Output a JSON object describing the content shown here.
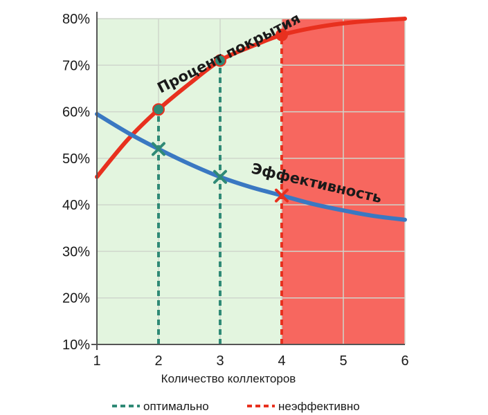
{
  "chart_data": {
    "type": "line",
    "xlabel": "Количество коллекторов",
    "x": [
      1,
      2,
      3,
      4,
      5,
      6
    ],
    "xlim": [
      1,
      6
    ],
    "ylim": [
      10,
      80
    ],
    "yticks": [
      "10%",
      "20%",
      "30%",
      "40%",
      "50%",
      "60%",
      "70%",
      "80%"
    ],
    "xticks": [
      "1",
      "2",
      "3",
      "4",
      "5",
      "6"
    ],
    "grid": true,
    "regions": [
      {
        "from": 1,
        "to": 4,
        "color": "#e3f5df"
      },
      {
        "from": 4,
        "to": 6,
        "color": "#f7675f"
      }
    ],
    "series": [
      {
        "name": "Процент покрытия",
        "color": "#e8301e",
        "points": [
          [
            1,
            46
          ],
          [
            1.5,
            54
          ],
          [
            2,
            60.5
          ],
          [
            2.5,
            66
          ],
          [
            3,
            71
          ],
          [
            3.5,
            74
          ],
          [
            4,
            76.5
          ],
          [
            4.5,
            78
          ],
          [
            5,
            79
          ],
          [
            5.5,
            79.6
          ],
          [
            6,
            80
          ]
        ]
      },
      {
        "name": "Эффективность",
        "color": "#3a78c2",
        "points": [
          [
            1,
            59.5
          ],
          [
            1.5,
            55.5
          ],
          [
            2,
            52
          ],
          [
            2.5,
            48.8
          ],
          [
            3,
            46
          ],
          [
            3.5,
            43.8
          ],
          [
            4,
            42
          ],
          [
            4.5,
            40.2
          ],
          [
            5,
            38.8
          ],
          [
            5.5,
            37.6
          ],
          [
            6,
            36.8
          ]
        ]
      }
    ],
    "markers": [
      {
        "x": 2,
        "y": 60.5,
        "shape": "dot",
        "color": "#2f8a76",
        "stroke": "#e8301e"
      },
      {
        "x": 3,
        "y": 71,
        "shape": "dot",
        "color": "#2f8a76",
        "stroke": "#e8301e"
      },
      {
        "x": 4,
        "y": 76.5,
        "shape": "dot",
        "color": "#e8301e",
        "stroke": "#e8301e"
      },
      {
        "x": 2,
        "y": 52,
        "shape": "cross",
        "color": "#2f8a76"
      },
      {
        "x": 3,
        "y": 46,
        "shape": "cross",
        "color": "#2f8a76"
      },
      {
        "x": 4,
        "y": 42,
        "shape": "cross",
        "color": "#e8301e"
      }
    ],
    "vlines": [
      {
        "x": 2,
        "from": 10,
        "to": 60.5,
        "color": "#2f8a76",
        "kind": "optimal"
      },
      {
        "x": 3,
        "from": 10,
        "to": 71,
        "color": "#2f8a76",
        "kind": "optimal"
      },
      {
        "x": 4,
        "from": 10,
        "to": 76.5,
        "color": "#e8301e",
        "kind": "inefficient"
      }
    ],
    "legend": [
      {
        "label": "оптимально",
        "color": "#2f8a76"
      },
      {
        "label": "неэффективно",
        "color": "#e8301e"
      }
    ]
  }
}
